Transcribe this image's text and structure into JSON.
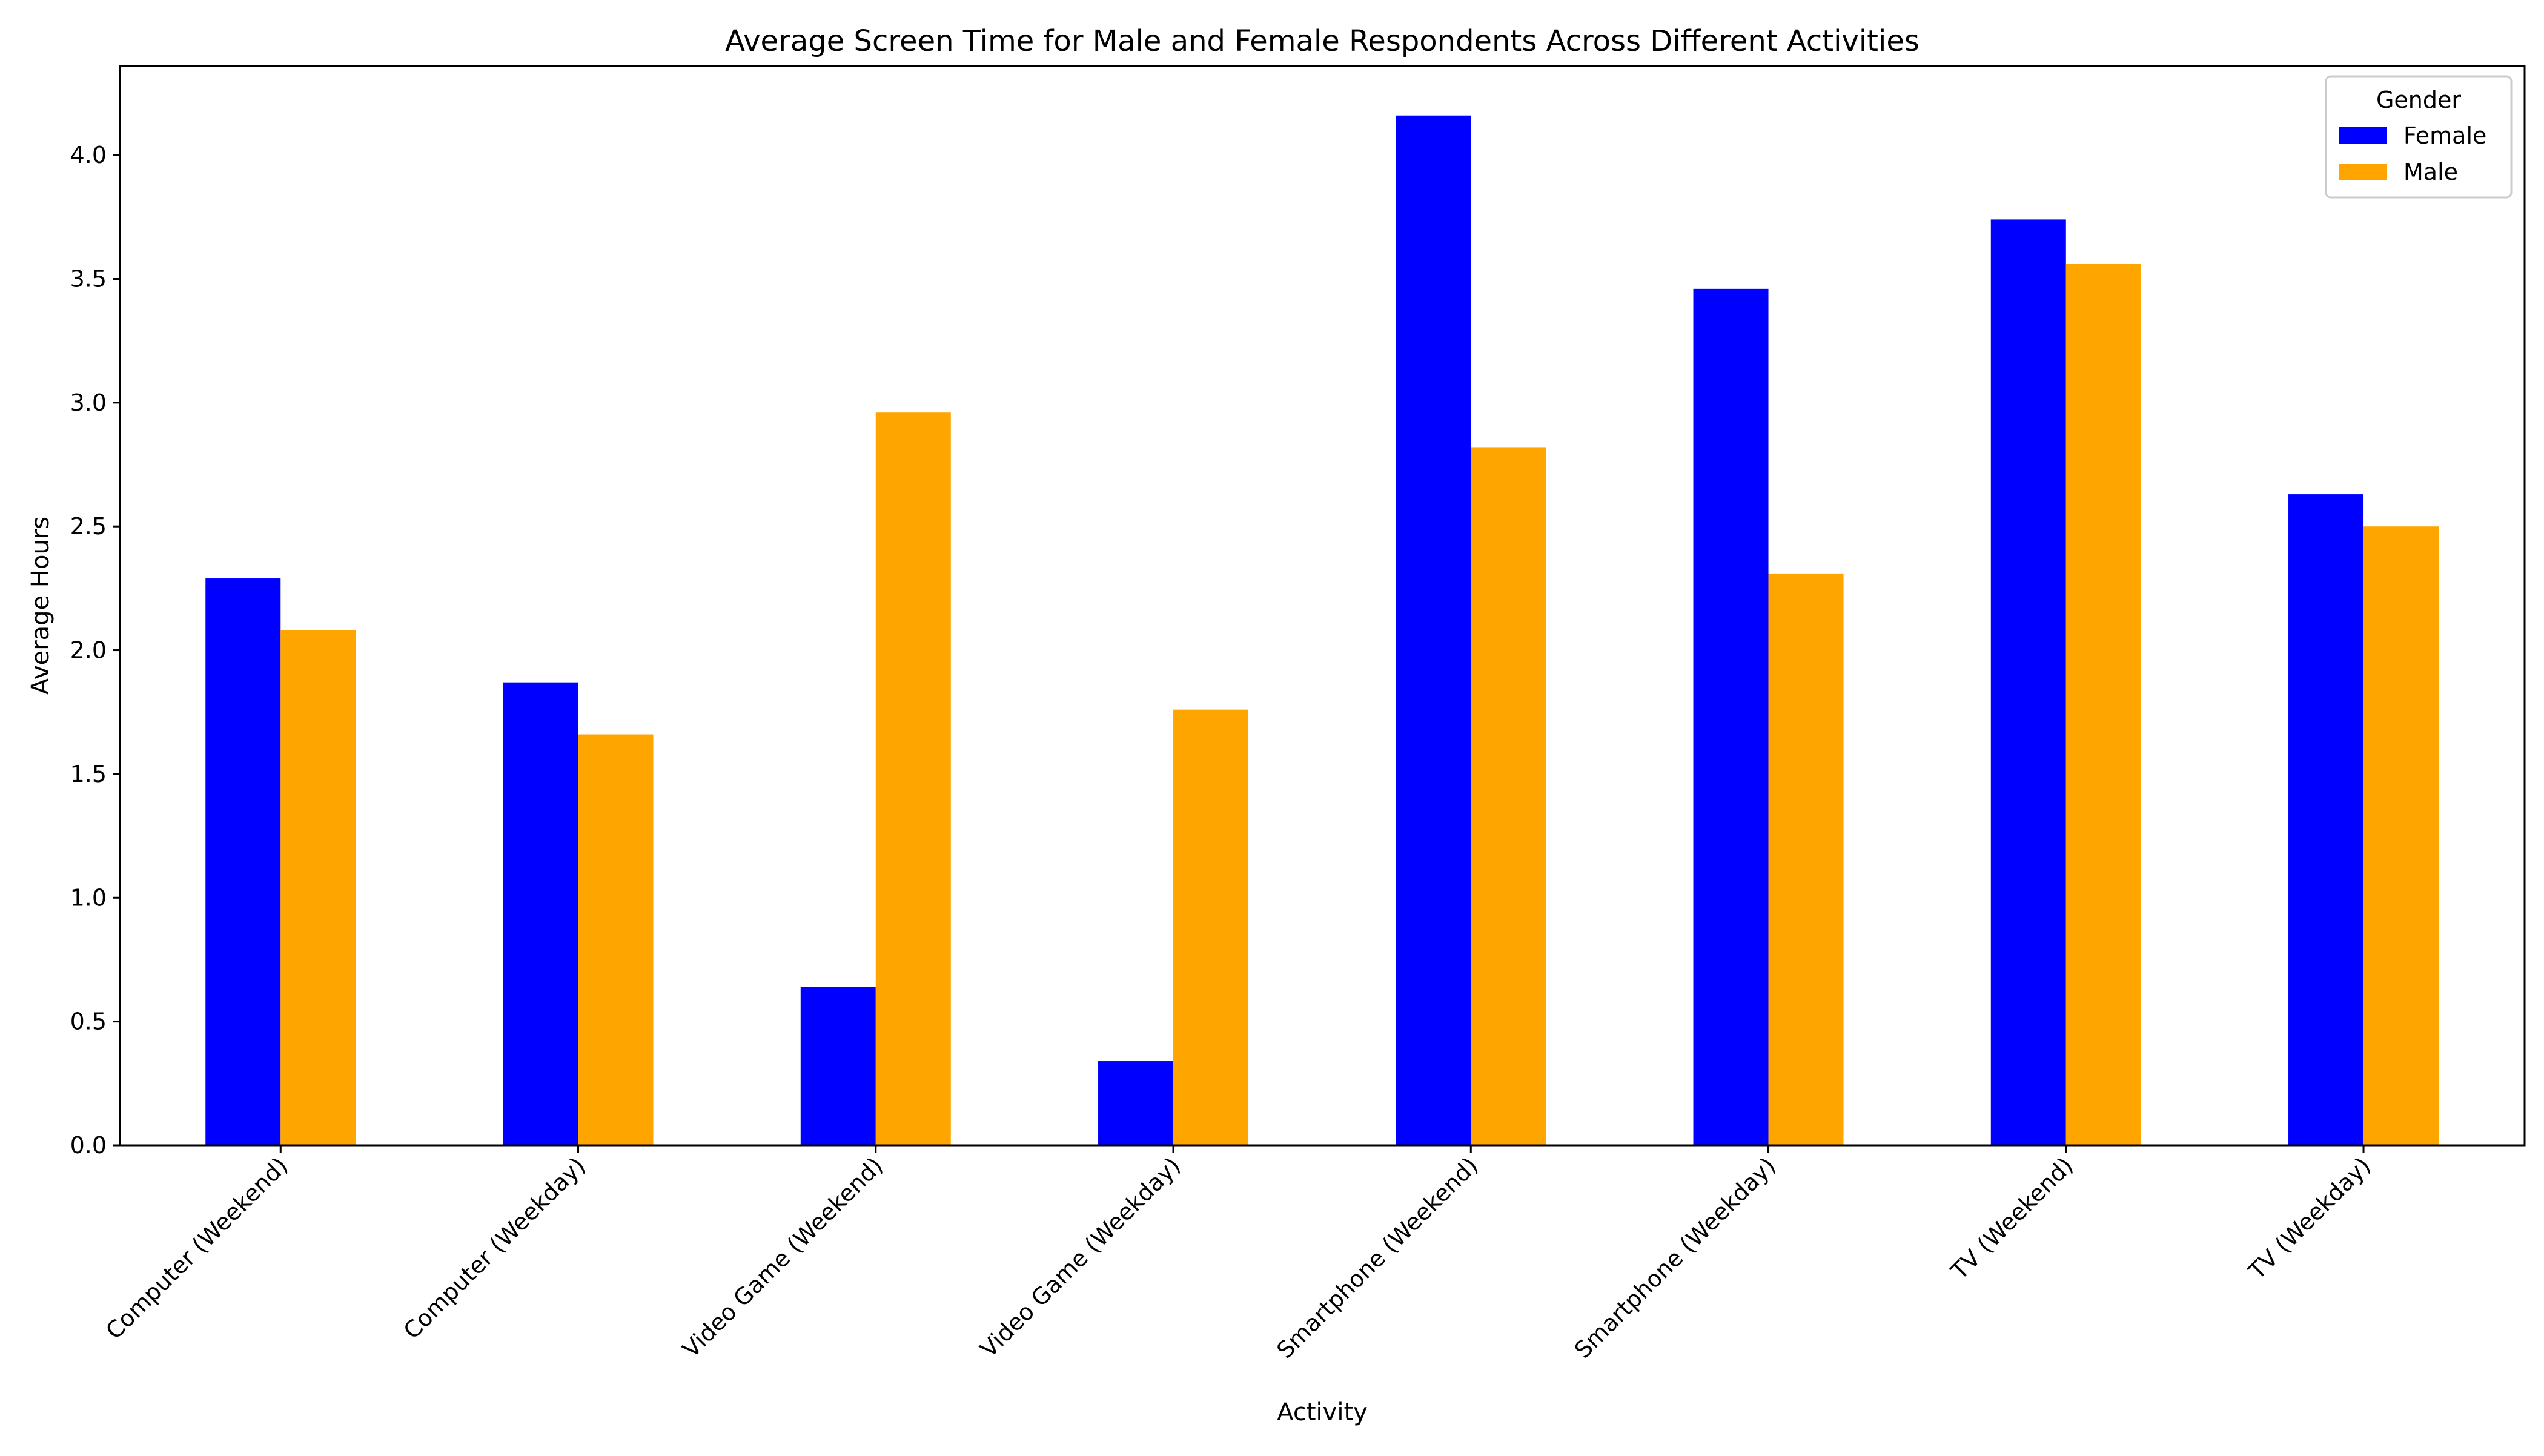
{
  "chart_data": {
    "type": "bar",
    "title": "Average Screen Time for Male and Female Respondents Across Different Activities",
    "xlabel": "Activity",
    "ylabel": "Average Hours",
    "categories": [
      "Computer (Weekend)",
      "Computer (Weekday)",
      "Video Game (Weekend)",
      "Video Game (Weekday)",
      "Smartphone (Weekend)",
      "Smartphone (Weekday)",
      "TV (Weekend)",
      "TV (Weekday)"
    ],
    "series": [
      {
        "name": "Female",
        "color": "#0000ff",
        "values": [
          2.29,
          1.87,
          0.64,
          0.34,
          4.16,
          3.46,
          3.74,
          2.63
        ]
      },
      {
        "name": "Male",
        "color": "#ffa500",
        "values": [
          2.08,
          1.66,
          2.96,
          1.76,
          2.82,
          2.31,
          3.56,
          2.5
        ]
      }
    ],
    "ylim": [
      0,
      4.36
    ],
    "yticks": [
      "0.0",
      "0.5",
      "1.0",
      "1.5",
      "2.0",
      "2.5",
      "3.0",
      "3.5",
      "4.0"
    ],
    "grid": false,
    "legend": {
      "title": "Gender",
      "placement": "top-right"
    }
  }
}
